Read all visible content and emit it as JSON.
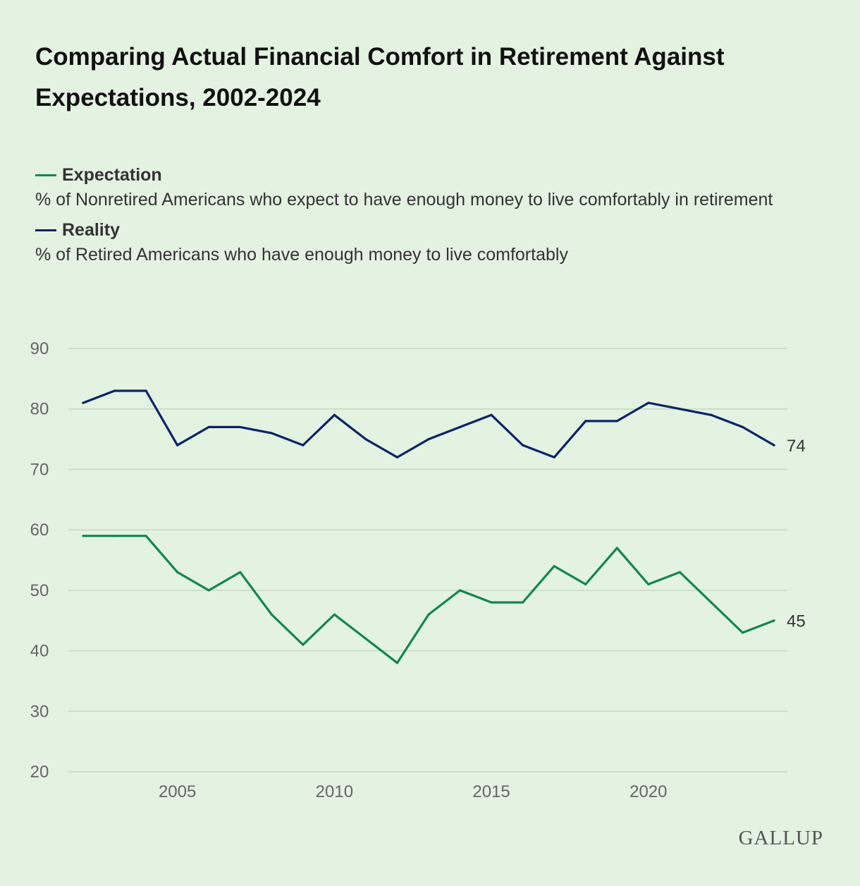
{
  "header": {
    "title": "Comparing Actual Financial Comfort in Retirement Against Expectations, 2002-2024"
  },
  "legend": [
    {
      "name": "Expectation",
      "description": "% of Nonretired Americans who expect to have enough money to live comfortably in retirement",
      "color": "#12874c"
    },
    {
      "name": "Reality",
      "description": "% of Retired Americans who have enough money to live comfortably",
      "color": "#0c2466"
    }
  ],
  "brand": "GALLUP",
  "chart_data": {
    "type": "line",
    "title": "Comparing Actual Financial Comfort in Retirement Against Expectations, 2002-2024",
    "xlabel": "",
    "ylabel": "",
    "x": [
      2002,
      2003,
      2004,
      2005,
      2006,
      2007,
      2008,
      2009,
      2010,
      2011,
      2012,
      2013,
      2014,
      2015,
      2016,
      2017,
      2018,
      2019,
      2020,
      2021,
      2022,
      2023,
      2024
    ],
    "xlim": [
      2002,
      2024
    ],
    "xticks": [
      2005,
      2010,
      2015,
      2020
    ],
    "ylim": [
      20,
      90
    ],
    "yticks": [
      20,
      30,
      40,
      50,
      60,
      70,
      80,
      90
    ],
    "grid": true,
    "legend_position": "top-left",
    "series": [
      {
        "name": "Reality",
        "color": "#0c2466",
        "values": [
          81,
          83,
          83,
          74,
          77,
          77,
          76,
          74,
          79,
          75,
          72,
          75,
          77,
          79,
          74,
          72,
          78,
          78,
          81,
          80,
          79,
          77,
          74
        ],
        "end_label": "74"
      },
      {
        "name": "Expectation",
        "color": "#12874c",
        "values": [
          59,
          59,
          59,
          53,
          50,
          53,
          46,
          41,
          46,
          42,
          38,
          46,
          50,
          48,
          48,
          54,
          51,
          57,
          51,
          53,
          48,
          43,
          45
        ],
        "end_label": "45"
      }
    ]
  }
}
